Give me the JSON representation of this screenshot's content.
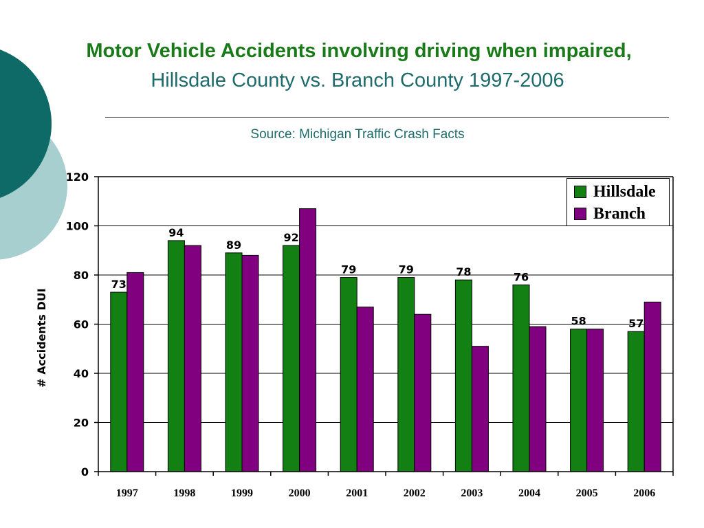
{
  "slide": {
    "title_line1": "Motor Vehicle Accidents involving driving when impaired,",
    "title_line2": "Hillsdale County vs. Branch County 1997-2006",
    "source": "Source: Michigan Traffic Crash Facts"
  },
  "colors": {
    "title_green": "#1a7a1a",
    "teal_text": "#1e6b6b",
    "decor_dark": "#0e6a66",
    "decor_light": "#a8cfd0"
  },
  "chart_data": {
    "type": "bar",
    "categories": [
      "1997",
      "1998",
      "1999",
      "2000",
      "2001",
      "2002",
      "2003",
      "2004",
      "2005",
      "2006"
    ],
    "series": [
      {
        "name": "Hillsdale",
        "color": "#138013",
        "values": [
          73,
          94,
          89,
          92,
          79,
          79,
          78,
          76,
          58,
          57
        ]
      },
      {
        "name": "Branch",
        "color": "#800080",
        "values": [
          81,
          92,
          88,
          107,
          67,
          64,
          51,
          59,
          58,
          69
        ]
      }
    ],
    "data_labels": [
      "73",
      "94",
      "89",
      "92",
      "79",
      "79",
      "78",
      "76",
      "58",
      "57"
    ],
    "ylabel": "# Accidents DUI",
    "xlabel": "",
    "ylim": [
      0,
      120
    ],
    "yticks": [
      0,
      20,
      40,
      60,
      80,
      100,
      120
    ],
    "grid": true,
    "legend_position": "top-right"
  }
}
